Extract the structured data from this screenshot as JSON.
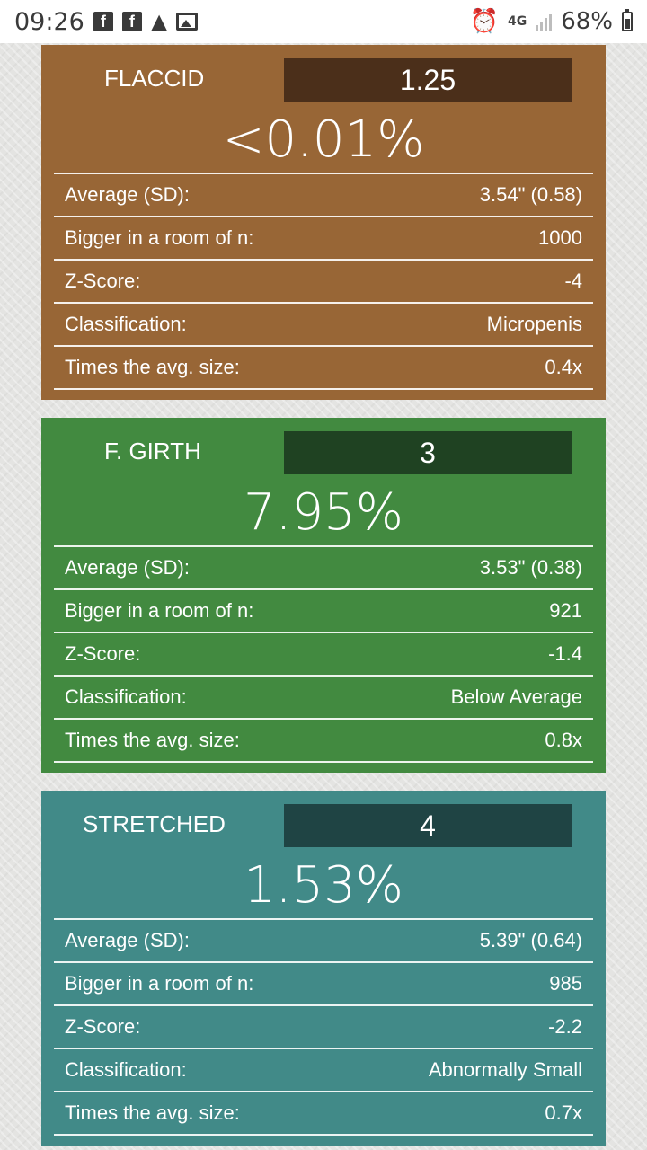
{
  "status_bar": {
    "time": "09:26",
    "network": "4G",
    "battery": "68%",
    "battery_level": 0.68
  },
  "cards": [
    {
      "label": "FLACCID",
      "value": "1.25",
      "percentile": "<0.01%",
      "rows": [
        {
          "label": "Average (SD):",
          "value": "3.54\" (0.58)"
        },
        {
          "label": "Bigger in a room of n:",
          "value": "1000"
        },
        {
          "label": "Z-Score:",
          "value": "-4"
        },
        {
          "label": "Classification:",
          "value": "Micropenis"
        },
        {
          "label": "Times the avg. size:",
          "value": "0.4x"
        }
      ]
    },
    {
      "label": "F. GIRTH",
      "value": "3",
      "percentile": "7.95%",
      "rows": [
        {
          "label": "Average (SD):",
          "value": "3.53\" (0.38)"
        },
        {
          "label": "Bigger in a room of n:",
          "value": "921"
        },
        {
          "label": "Z-Score:",
          "value": "-1.4"
        },
        {
          "label": "Classification:",
          "value": "Below Average"
        },
        {
          "label": "Times the avg. size:",
          "value": "0.8x"
        }
      ]
    },
    {
      "label": "STRETCHED",
      "value": "4",
      "percentile": "1.53%",
      "rows": [
        {
          "label": "Average (SD):",
          "value": "5.39\" (0.64)"
        },
        {
          "label": "Bigger in a room of n:",
          "value": "985"
        },
        {
          "label": "Z-Score:",
          "value": "-2.2"
        },
        {
          "label": "Classification:",
          "value": "Abnormally Small"
        },
        {
          "label": "Times the avg. size:",
          "value": "0.7x"
        }
      ]
    }
  ],
  "colors": {
    "flaccid_bg": "#986636",
    "girth_bg": "#428a40",
    "stretched_bg": "#418a88"
  }
}
